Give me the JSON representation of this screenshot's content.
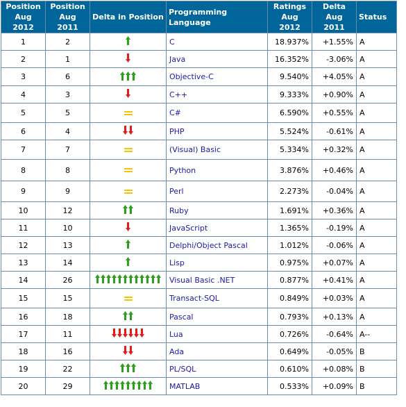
{
  "headers": {
    "pos2012_line1": "Position",
    "pos2012_line2": "Aug 2012",
    "pos2011_line1": "Position",
    "pos2011_line2": "Aug 2011",
    "delta": "Delta in Position",
    "language": "Programming Language",
    "ratings_line1": "Ratings",
    "ratings_line2": "Aug 2012",
    "deltaAug_line1": "Delta",
    "deltaAug_line2": "Aug 2011",
    "status": "Status"
  },
  "colors": {
    "header_bg": "#006699",
    "up": "#2e9e1f",
    "down": "#e21b1b",
    "same": "#f4c400",
    "language_link": "#1a1aa6"
  },
  "rows": [
    {
      "pos2012": "1",
      "pos2011": "2",
      "dir": "up",
      "count": 1,
      "language": "C",
      "ratings": "18.937%",
      "delta": "+1.55%",
      "status": "A"
    },
    {
      "pos2012": "2",
      "pos2011": "1",
      "dir": "down",
      "count": 1,
      "language": "Java",
      "ratings": "16.352%",
      "delta": "-3.06%",
      "status": "A"
    },
    {
      "pos2012": "3",
      "pos2011": "6",
      "dir": "up",
      "count": 3,
      "language": "Objective-C",
      "ratings": "9.540%",
      "delta": "+4.05%",
      "status": "A"
    },
    {
      "pos2012": "4",
      "pos2011": "3",
      "dir": "down",
      "count": 1,
      "language": "C++",
      "ratings": "9.333%",
      "delta": "+0.90%",
      "status": "A"
    },
    {
      "pos2012": "5",
      "pos2011": "5",
      "dir": "same",
      "count": 1,
      "language": "C#",
      "ratings": "6.590%",
      "delta": "+0.55%",
      "status": "A"
    },
    {
      "pos2012": "6",
      "pos2011": "4",
      "dir": "down",
      "count": 2,
      "language": "PHP",
      "ratings": "5.524%",
      "delta": "-0.61%",
      "status": "A"
    },
    {
      "pos2012": "7",
      "pos2011": "7",
      "dir": "same",
      "count": 1,
      "language": "(Visual) Basic",
      "ratings": "5.334%",
      "delta": "+0.32%",
      "status": "A"
    },
    {
      "pos2012": "8",
      "pos2011": "8",
      "dir": "same",
      "count": 1,
      "language": "Python",
      "ratings": "3.876%",
      "delta": "+0.46%",
      "status": "A"
    },
    {
      "pos2012": "9",
      "pos2011": "9",
      "dir": "same",
      "count": 1,
      "language": "Perl",
      "ratings": "2.273%",
      "delta": "-0.04%",
      "status": "A"
    },
    {
      "pos2012": "10",
      "pos2011": "12",
      "dir": "up",
      "count": 2,
      "language": "Ruby",
      "ratings": "1.691%",
      "delta": "+0.36%",
      "status": "A"
    },
    {
      "pos2012": "11",
      "pos2011": "10",
      "dir": "down",
      "count": 1,
      "language": "JavaScript",
      "ratings": "1.365%",
      "delta": "-0.19%",
      "status": "A"
    },
    {
      "pos2012": "12",
      "pos2011": "13",
      "dir": "up",
      "count": 1,
      "language": "Delphi/Object Pascal",
      "ratings": "1.012%",
      "delta": "-0.06%",
      "status": "A"
    },
    {
      "pos2012": "13",
      "pos2011": "14",
      "dir": "up",
      "count": 1,
      "language": "Lisp",
      "ratings": "0.975%",
      "delta": "+0.07%",
      "status": "A"
    },
    {
      "pos2012": "14",
      "pos2011": "26",
      "dir": "up",
      "count": 12,
      "language": "Visual Basic .NET",
      "ratings": "0.877%",
      "delta": "+0.41%",
      "status": "A"
    },
    {
      "pos2012": "15",
      "pos2011": "15",
      "dir": "same",
      "count": 1,
      "language": "Transact-SQL",
      "ratings": "0.849%",
      "delta": "+0.03%",
      "status": "A"
    },
    {
      "pos2012": "16",
      "pos2011": "18",
      "dir": "up",
      "count": 2,
      "language": "Pascal",
      "ratings": "0.793%",
      "delta": "+0.13%",
      "status": "A"
    },
    {
      "pos2012": "17",
      "pos2011": "11",
      "dir": "down",
      "count": 6,
      "language": "Lua",
      "ratings": "0.726%",
      "delta": "-0.64%",
      "status": "A--"
    },
    {
      "pos2012": "18",
      "pos2011": "16",
      "dir": "down",
      "count": 2,
      "language": "Ada",
      "ratings": "0.649%",
      "delta": "-0.05%",
      "status": "B"
    },
    {
      "pos2012": "19",
      "pos2011": "22",
      "dir": "up",
      "count": 3,
      "language": "PL/SQL",
      "ratings": "0.610%",
      "delta": "+0.08%",
      "status": "B"
    },
    {
      "pos2012": "20",
      "pos2011": "29",
      "dir": "up",
      "count": 9,
      "language": "MATLAB",
      "ratings": "0.533%",
      "delta": "+0.09%",
      "status": "B"
    }
  ]
}
